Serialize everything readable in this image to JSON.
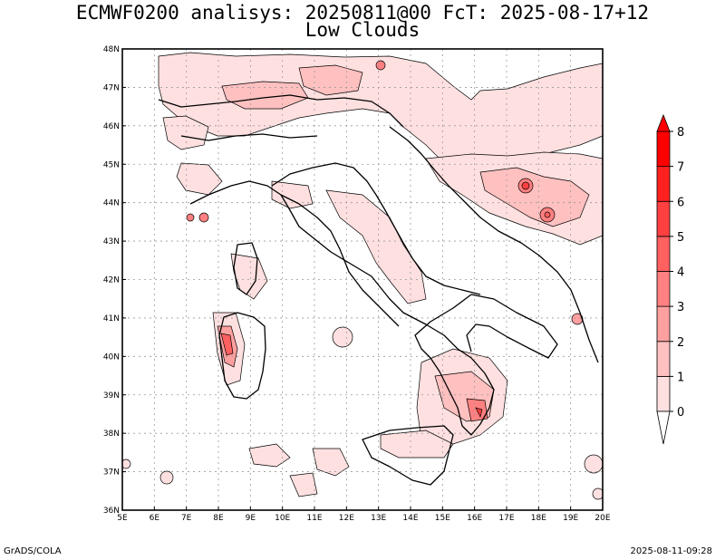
{
  "header": {
    "title_line1": "ECMWF0200 analisys: 20250811@00 FcT: 2025-08-17+12",
    "title_line2": "Low Clouds"
  },
  "axes": {
    "lon_labels": [
      "5E",
      "6E",
      "7E",
      "8E",
      "9E",
      "10E",
      "11E",
      "12E",
      "13E",
      "14E",
      "15E",
      "16E",
      "17E",
      "18E",
      "19E",
      "20E"
    ],
    "lat_labels": [
      "36N",
      "37N",
      "38N",
      "39N",
      "40N",
      "41N",
      "42N",
      "43N",
      "44N",
      "45N",
      "46N",
      "47N",
      "48N"
    ],
    "lon_range": [
      5,
      20
    ],
    "lat_range": [
      36,
      48
    ]
  },
  "colorbar": {
    "levels": [
      "0",
      "1",
      "2",
      "3",
      "4",
      "5",
      "6",
      "7",
      "8"
    ],
    "colors": [
      "#ffffff",
      "#ffe0e0",
      "#ffc0c0",
      "#ffa0a0",
      "#ff8080",
      "#ff6060",
      "#ff4040",
      "#ff2020",
      "#ff0000"
    ]
  },
  "footer": {
    "left": "GrADS/COLA",
    "right": "2025-08-11-09:28"
  }
}
